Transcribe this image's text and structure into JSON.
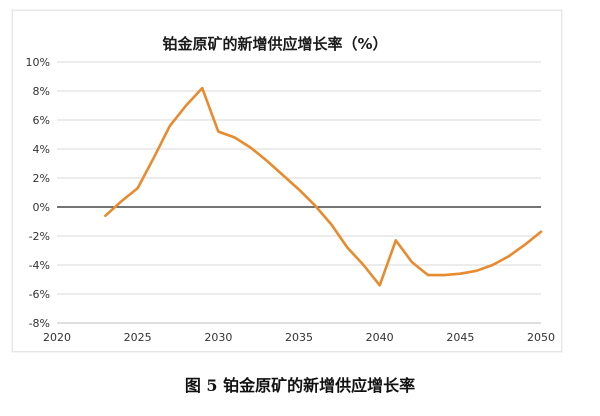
{
  "caption": "图 5  铂金原矿的新增供应增长率",
  "chart_data": {
    "type": "line",
    "title": "铂金原矿的新增供应增长率（%）",
    "xlabel": "",
    "ylabel": "",
    "xlim": [
      2020,
      2050
    ],
    "ylim": [
      -8,
      10
    ],
    "x_ticks": [
      2020,
      2025,
      2030,
      2035,
      2040,
      2045,
      2050
    ],
    "y_ticks": [
      10,
      8,
      6,
      4,
      2,
      0,
      -2,
      -4,
      -6,
      -8
    ],
    "x_tick_labels": [
      "2020",
      "2025",
      "2030",
      "2035",
      "2040",
      "2045",
      "2050"
    ],
    "y_tick_labels": [
      "10%",
      "8%",
      "6%",
      "4%",
      "2%",
      "0%",
      "-2%",
      "-4%",
      "-6%",
      "-8%"
    ],
    "grid": true,
    "series": [
      {
        "color": "#E88A2E",
        "x": [
          2023,
          2024,
          2025,
          2026,
          2027,
          2028,
          2029,
          2030,
          2031,
          2032,
          2033,
          2034,
          2035,
          2036,
          2037,
          2038,
          2039,
          2040,
          2041,
          2042,
          2043,
          2044,
          2045,
          2046,
          2047,
          2048,
          2049,
          2050
        ],
        "values": [
          -0.6,
          0.4,
          1.3,
          3.4,
          5.6,
          7.0,
          8.2,
          5.2,
          4.8,
          4.1,
          3.2,
          2.2,
          1.2,
          0.1,
          -1.2,
          -2.8,
          -4.0,
          -5.4,
          -2.3,
          -3.8,
          -4.7,
          -4.7,
          -4.6,
          -4.4,
          -4.0,
          -3.4,
          -2.6,
          -1.7
        ]
      }
    ]
  }
}
